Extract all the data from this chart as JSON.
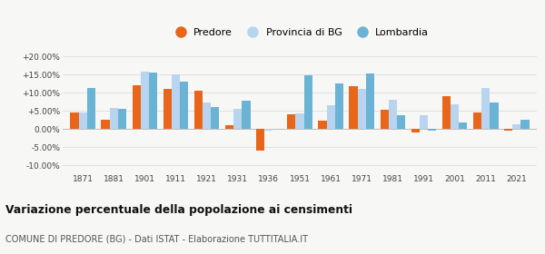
{
  "years": [
    1871,
    1881,
    1901,
    1911,
    1921,
    1931,
    1936,
    1951,
    1961,
    1971,
    1981,
    1991,
    2001,
    2011,
    2021
  ],
  "predore": [
    4.5,
    2.7,
    12.0,
    11.2,
    10.7,
    1.0,
    -5.8,
    4.1,
    2.4,
    11.8,
    5.3,
    -0.8,
    9.1,
    4.6,
    -0.5
  ],
  "provincia_bg": [
    4.5,
    5.8,
    15.8,
    15.2,
    7.3,
    5.6,
    -0.5,
    4.3,
    6.6,
    11.0,
    8.1,
    3.9,
    6.9,
    11.4,
    1.3
  ],
  "lombardia": [
    11.4,
    5.7,
    15.6,
    13.2,
    6.0,
    7.9,
    0.0,
    14.9,
    12.6,
    15.3,
    3.8,
    -0.3,
    1.8,
    7.3,
    2.5
  ],
  "color_predore": "#e8651a",
  "color_provincia": "#b8d4ee",
  "color_lombardia": "#6bb3d4",
  "title": "Variazione percentuale della popolazione ai censimenti",
  "subtitle": "COMUNE DI PREDORE (BG) - Dati ISTAT - Elaborazione TUTTITALIA.IT",
  "ylim": [
    -12,
    23
  ],
  "yticks": [
    -10,
    -5,
    0,
    5,
    10,
    15,
    20
  ],
  "ytick_labels": [
    "-10.00%",
    "-5.00%",
    "0.00%",
    "+5.00%",
    "+10.00%",
    "+15.00%",
    "+20.00%"
  ],
  "legend_labels": [
    "Predore",
    "Provincia di BG",
    "Lombardia"
  ],
  "bar_width": 0.27
}
